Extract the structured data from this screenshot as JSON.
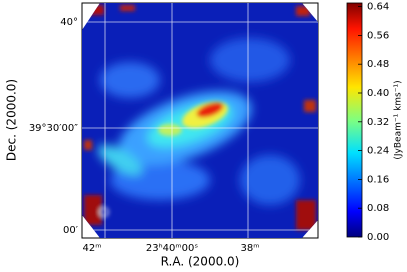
{
  "chart_data": {
    "type": "image",
    "xlabel": "R.A. (2000.0)",
    "ylabel": "Dec. (2000.0)",
    "x_tick_labels": [
      "42ᵐ",
      "23ʰ40ᵐ00ˢ",
      "38ᵐ"
    ],
    "y_tick_labels": [
      "40°",
      "39°30′00″",
      "00′"
    ],
    "colorbar_label": "(JyBeam⁻¹ kms⁻¹)",
    "clim": [
      0,
      0.65
    ],
    "cticks": [
      {
        "value": 0,
        "label": "0.00"
      },
      0.08,
      0.16,
      0.24,
      0.32,
      {
        "value": 0.4,
        "label": "0.40"
      },
      0.48,
      0.56,
      0.64
    ]
  }
}
